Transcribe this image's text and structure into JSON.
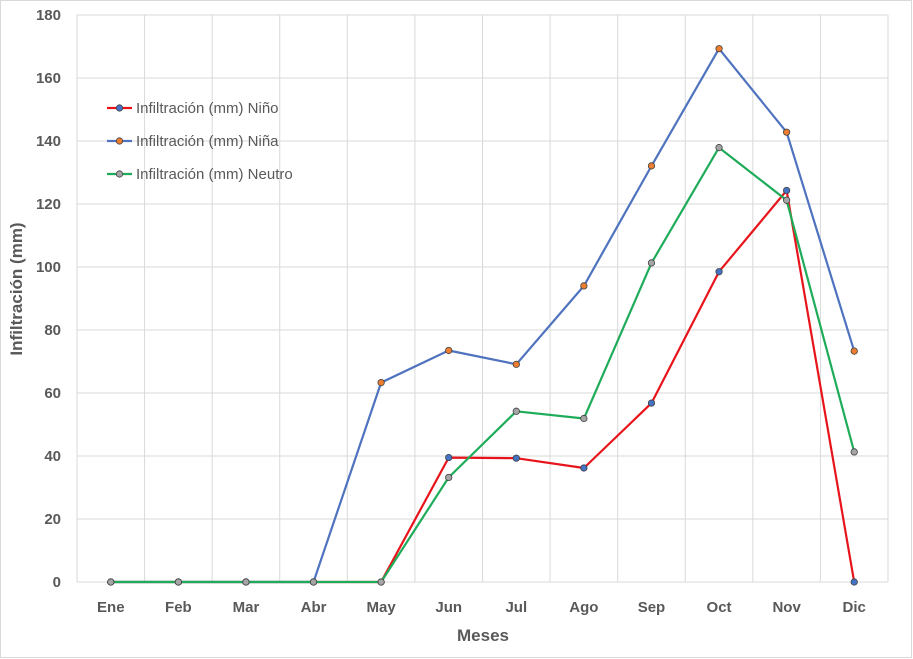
{
  "chart_data": {
    "type": "line",
    "categories": [
      "Ene",
      "Feb",
      "Mar",
      "Abr",
      "May",
      "Jun",
      "Jul",
      "Ago",
      "Sep",
      "Oct",
      "Nov",
      "Dic"
    ],
    "xlabel": "Meses",
    "ylabel": "Infiltración (mm)",
    "ylim": [
      0,
      180
    ],
    "yticks": [
      "0",
      "20",
      "40",
      "60",
      "80",
      "100",
      "120",
      "140",
      "160",
      "180"
    ],
    "grid": true,
    "legend_position": "top-left",
    "series": [
      {
        "name": "Infiltración (mm) Niño",
        "line_color": "#e8141b",
        "marker_color": "#4472c4",
        "values": [
          0,
          0,
          0,
          0,
          0,
          39.5,
          39.3,
          36.2,
          56.8,
          98.5,
          124.3,
          0
        ]
      },
      {
        "name": "Infiltración (mm) Niña",
        "line_color": "#4f73be",
        "marker_color": "#ed7d31",
        "values": [
          0,
          0,
          0,
          0,
          63.3,
          73.5,
          69.1,
          94.0,
          132.1,
          169.3,
          142.8,
          73.3
        ]
      },
      {
        "name": "Infiltración (mm) Neutro",
        "line_color": "#1fac5a",
        "marker_color": "#a5a5a5",
        "values": [
          0,
          0,
          0,
          0,
          0,
          33.2,
          54.2,
          51.9,
          101.3,
          137.9,
          121.2,
          41.3
        ]
      }
    ]
  }
}
